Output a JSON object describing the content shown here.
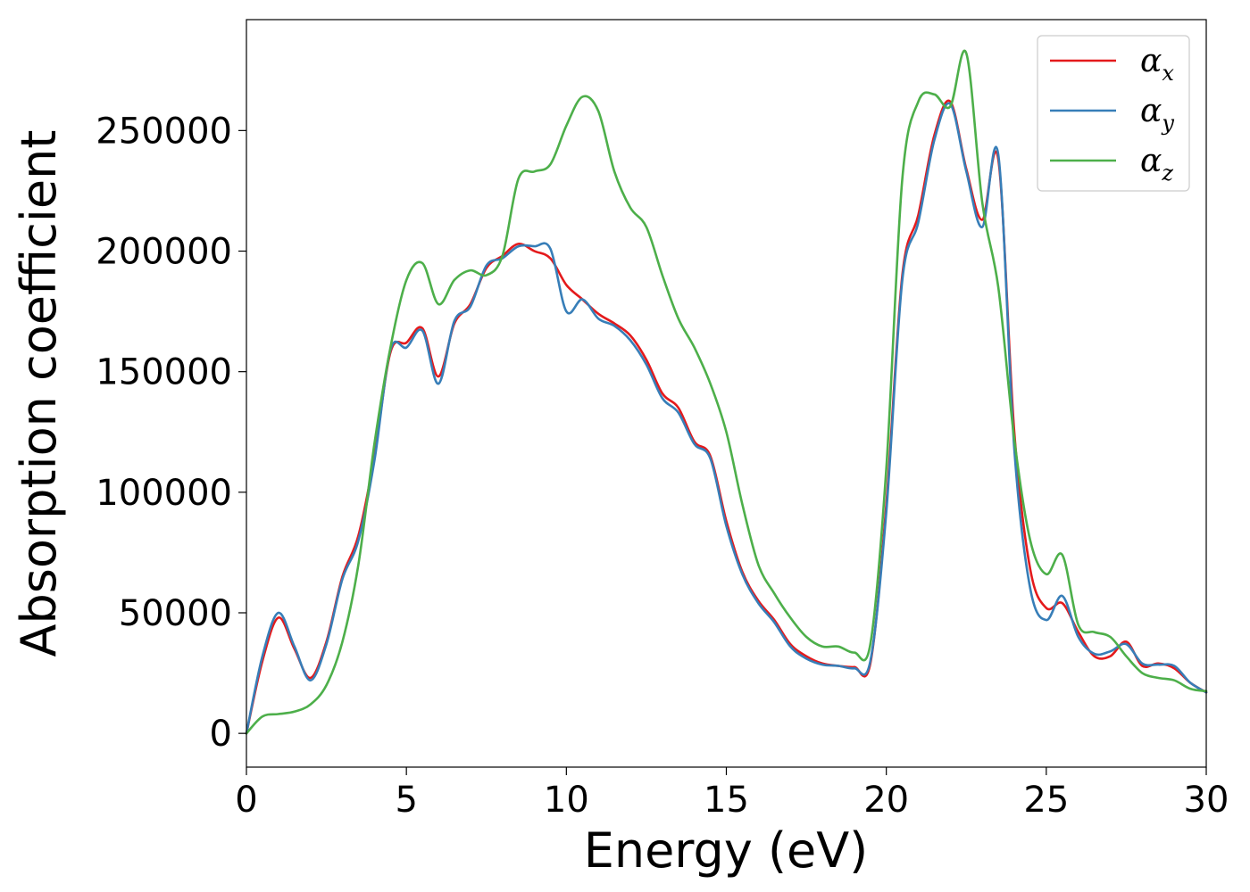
{
  "chart_data": {
    "type": "line",
    "title": "",
    "xlabel": "Energy (eV)",
    "ylabel": "Absorption coefficient",
    "xlim": [
      0,
      30
    ],
    "ylim": [
      -14000,
      296000
    ],
    "xticks": [
      0,
      5,
      10,
      15,
      20,
      25,
      30
    ],
    "yticks": [
      0,
      50000,
      100000,
      150000,
      200000,
      250000
    ],
    "xtick_labels": [
      "0",
      "5",
      "10",
      "15",
      "20",
      "25",
      "30"
    ],
    "ytick_labels": [
      "0",
      "50000",
      "100000",
      "150000",
      "200000",
      "250000"
    ],
    "grid": false,
    "legend_position": "top-right",
    "x": [
      0,
      0.5,
      1,
      1.5,
      2,
      2.5,
      3,
      3.5,
      4,
      4.5,
      5,
      5.5,
      6,
      6.5,
      7,
      7.5,
      8,
      8.5,
      9,
      9.5,
      10,
      10.5,
      11,
      11.5,
      12,
      12.5,
      13,
      13.5,
      14,
      14.5,
      15,
      15.5,
      16,
      16.5,
      17,
      17.5,
      18,
      18.5,
      19,
      19.5,
      20,
      20.5,
      21,
      21.5,
      22,
      22.5,
      23,
      23.5,
      24,
      24.5,
      25,
      25.5,
      26,
      26.5,
      27,
      27.5,
      28,
      28.5,
      29,
      29.5,
      30
    ],
    "series": [
      {
        "name": "α",
        "subscript": "x",
        "color": "#e41a1c",
        "values": [
          0,
          30000,
          48000,
          35000,
          23000,
          38000,
          65000,
          82000,
          115000,
          158000,
          162000,
          168000,
          148000,
          170000,
          178000,
          193000,
          198000,
          203000,
          200000,
          197000,
          186000,
          180000,
          174000,
          170000,
          165000,
          155000,
          141000,
          135000,
          121000,
          115000,
          88000,
          67000,
          55000,
          47000,
          37000,
          32000,
          29000,
          28000,
          27500,
          29000,
          95000,
          190000,
          215000,
          248000,
          262000,
          234000,
          213000,
          238000,
          125000,
          68000,
          52000,
          54000,
          42000,
          32000,
          32000,
          38000,
          28000,
          29000,
          27000,
          21000,
          17000
        ]
      },
      {
        "name": "α",
        "subscript": "y",
        "color": "#377eb8",
        "values": [
          0,
          32000,
          50000,
          36000,
          22000,
          37000,
          64000,
          80000,
          113000,
          159000,
          160000,
          167000,
          145000,
          171000,
          177000,
          194000,
          197000,
          202000,
          202000,
          201000,
          175000,
          180000,
          172000,
          169000,
          163000,
          153000,
          139000,
          133000,
          120000,
          114000,
          86000,
          66000,
          54000,
          46000,
          36000,
          31000,
          28500,
          28000,
          27000,
          30000,
          92000,
          188000,
          212000,
          246000,
          261000,
          233000,
          210000,
          240000,
          118000,
          60000,
          47000,
          57000,
          40000,
          33000,
          34000,
          37000,
          29000,
          28500,
          28000,
          21000,
          17000
        ]
      },
      {
        "name": "α",
        "subscript": "z",
        "color": "#4daf4a",
        "values": [
          0,
          7000,
          8000,
          9000,
          12000,
          20000,
          38000,
          70000,
          120000,
          160000,
          188000,
          195000,
          178000,
          188000,
          192000,
          190000,
          198000,
          230000,
          233000,
          236000,
          252000,
          264000,
          258000,
          233000,
          218000,
          210000,
          190000,
          172000,
          160000,
          145000,
          125000,
          95000,
          70000,
          58000,
          48000,
          40000,
          36000,
          36000,
          33500,
          37000,
          110000,
          230000,
          262000,
          265000,
          260000,
          282000,
          220000,
          185000,
          122000,
          80000,
          66000,
          74000,
          45000,
          42000,
          40000,
          32000,
          25000,
          23000,
          22000,
          18500,
          17500
        ]
      }
    ]
  }
}
